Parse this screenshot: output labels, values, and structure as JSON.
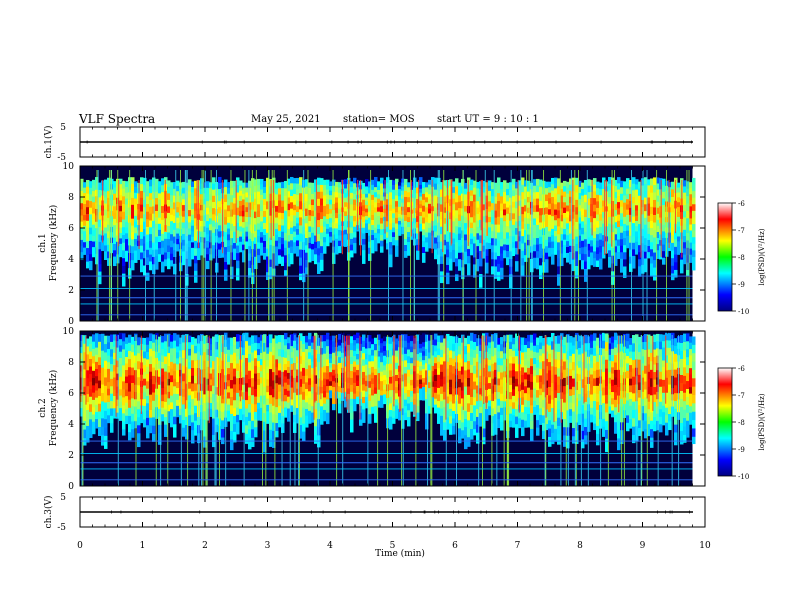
{
  "header": {
    "title": "VLF Spectra",
    "date": "May 25, 2021",
    "station": "station= MOS",
    "start": "start  UT  =   9  : 10 : 1"
  },
  "chart_data": [
    {
      "type": "line",
      "ylabel": "ch.1(V)",
      "ylim": [
        -5,
        5
      ],
      "ticks": [
        "5",
        "-5"
      ],
      "x": [
        0,
        10
      ],
      "values": [
        0,
        0
      ]
    },
    {
      "type": "heatmap",
      "ylabel_line1": "ch.1",
      "ylabel_line2": "Frequency  (kHz)",
      "ylim": [
        0,
        10
      ],
      "ticks": [
        "0",
        "2",
        "4",
        "6",
        "8",
        "10"
      ],
      "band_hi_khz": 9.1,
      "peak_khz": 7.2,
      "colorbar": {
        "label": "log(PSD)(V²/Hz)",
        "ticks": [
          "-6",
          "-7",
          "-8",
          "-9",
          "-10"
        ],
        "range": [
          -10,
          -6
        ]
      }
    },
    {
      "type": "heatmap",
      "ylabel_line1": "ch.2",
      "ylabel_line2": "Frequency  (kHz)",
      "ylim": [
        0,
        10
      ],
      "ticks": [
        "0",
        "2",
        "4",
        "6",
        "8",
        "10"
      ],
      "band_hi_khz": 9.7,
      "peak_khz": 6.7,
      "colorbar": {
        "label": "log(PSD)(V²/Hz)",
        "ticks": [
          "-6",
          "-7",
          "-8",
          "-9",
          "-10"
        ],
        "range": [
          -10,
          -6
        ]
      }
    },
    {
      "type": "line",
      "ylabel": "ch.3(V)",
      "ylim": [
        -5,
        5
      ],
      "ticks": [
        "5",
        "-5"
      ],
      "x": [
        0,
        10
      ],
      "values": [
        0,
        0
      ]
    }
  ],
  "xaxis": {
    "label": "Time  (min)",
    "xlim": [
      0,
      10
    ],
    "ticks": [
      "0",
      "1",
      "2",
      "3",
      "4",
      "5",
      "6",
      "7",
      "8",
      "9",
      "10"
    ],
    "data_end_min": 9.8
  }
}
